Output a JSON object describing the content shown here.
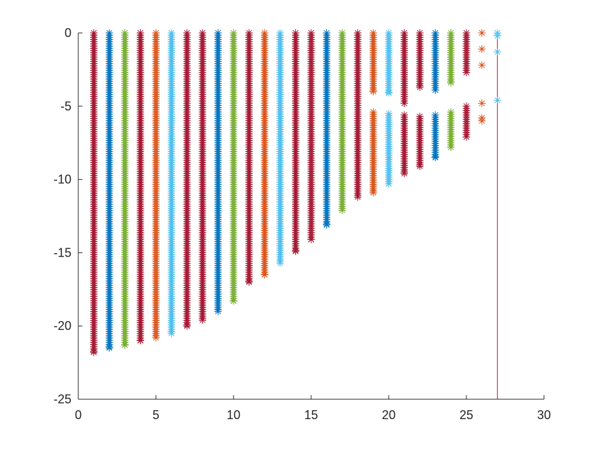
{
  "chart_data": {
    "type": "scatter",
    "title": "",
    "xlabel": "",
    "ylabel": "",
    "xlim": [
      0,
      30
    ],
    "ylim": [
      -25,
      0
    ],
    "xticks": [
      "0",
      "5",
      "10",
      "15",
      "20",
      "25",
      "30"
    ],
    "yticks": [
      "0",
      "-5",
      "-10",
      "-15",
      "-20",
      "-25"
    ],
    "grid": false,
    "legend": "none",
    "marker": "asterisk",
    "vertical_lines": [
      {
        "x": 0,
        "color": "#A2142F"
      },
      {
        "x": 27,
        "color": "#A2142F"
      }
    ],
    "series": [
      {
        "x": 1,
        "color": "#A2142F",
        "ranges": [
          [
            0,
            -21.8
          ]
        ]
      },
      {
        "x": 2,
        "color": "#0072BD",
        "ranges": [
          [
            0,
            -21.5
          ]
        ]
      },
      {
        "x": 3,
        "color": "#77AC30",
        "ranges": [
          [
            0,
            -21.3
          ]
        ]
      },
      {
        "x": 4,
        "color": "#A2142F",
        "ranges": [
          [
            0,
            -21.0
          ]
        ]
      },
      {
        "x": 5,
        "color": "#D95319",
        "ranges": [
          [
            0,
            -20.8
          ]
        ]
      },
      {
        "x": 6,
        "color": "#4DBEEE",
        "ranges": [
          [
            0,
            -20.5
          ]
        ]
      },
      {
        "x": 7,
        "color": "#A2142F",
        "ranges": [
          [
            0,
            -20.0
          ]
        ]
      },
      {
        "x": 8,
        "color": "#A2142F",
        "ranges": [
          [
            0,
            -19.6
          ]
        ]
      },
      {
        "x": 9,
        "color": "#0072BD",
        "ranges": [
          [
            0,
            -19.0
          ]
        ]
      },
      {
        "x": 10,
        "color": "#77AC30",
        "ranges": [
          [
            0,
            -18.3
          ]
        ]
      },
      {
        "x": 11,
        "color": "#A2142F",
        "ranges": [
          [
            0,
            -17.0
          ]
        ]
      },
      {
        "x": 12,
        "color": "#D95319",
        "ranges": [
          [
            0,
            -16.5
          ]
        ]
      },
      {
        "x": 13,
        "color": "#4DBEEE",
        "ranges": [
          [
            0,
            -15.7
          ]
        ]
      },
      {
        "x": 14,
        "color": "#A2142F",
        "ranges": [
          [
            0,
            -14.9
          ]
        ]
      },
      {
        "x": 15,
        "color": "#A2142F",
        "ranges": [
          [
            0,
            -14.1
          ]
        ]
      },
      {
        "x": 16,
        "color": "#0072BD",
        "ranges": [
          [
            0,
            -13.1
          ]
        ]
      },
      {
        "x": 17,
        "color": "#77AC30",
        "ranges": [
          [
            0,
            -12.1
          ]
        ]
      },
      {
        "x": 18,
        "color": "#A2142F",
        "ranges": [
          [
            0,
            -11.2
          ]
        ]
      },
      {
        "x": 19,
        "color": "#D95319",
        "ranges": [
          [
            0,
            -4.0
          ],
          [
            -5.4,
            -10.9
          ]
        ]
      },
      {
        "x": 20,
        "color": "#4DBEEE",
        "ranges": [
          [
            0,
            -4.1
          ],
          [
            -5.5,
            -10.3
          ]
        ]
      },
      {
        "x": 21,
        "color": "#A2142F",
        "ranges": [
          [
            0,
            -4.8
          ],
          [
            -5.6,
            -9.6
          ]
        ]
      },
      {
        "x": 22,
        "color": "#A2142F",
        "ranges": [
          [
            0,
            -3.7
          ],
          [
            -5.7,
            -9.1
          ]
        ]
      },
      {
        "x": 23,
        "color": "#0072BD",
        "ranges": [
          [
            0,
            -3.9
          ],
          [
            -5.6,
            -8.5
          ]
        ]
      },
      {
        "x": 24,
        "color": "#77AC30",
        "ranges": [
          [
            0,
            -3.4
          ],
          [
            -5.4,
            -7.8
          ]
        ]
      },
      {
        "x": 25,
        "color": "#A2142F",
        "ranges": [
          [
            0,
            -2.7
          ],
          [
            -5.0,
            -7.1
          ]
        ]
      },
      {
        "x": 26,
        "color": "#D95319",
        "points": [
          0,
          -1.1,
          -2.2,
          -4.8,
          -5.8,
          -6.0
        ]
      },
      {
        "x": 27,
        "color": "#4DBEEE",
        "points": [
          0,
          -0.2,
          -1.3,
          -4.6
        ]
      }
    ]
  }
}
